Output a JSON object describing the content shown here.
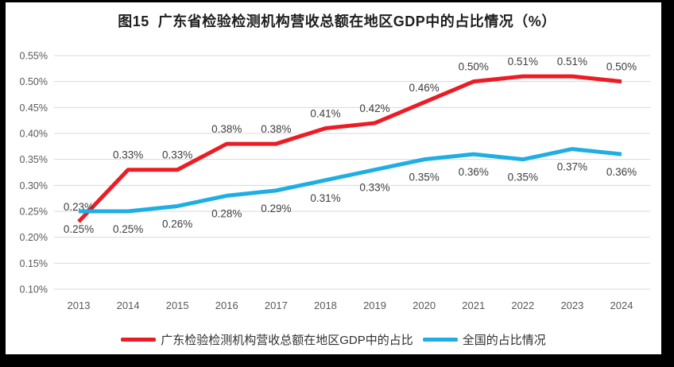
{
  "chart_data": {
    "type": "line",
    "title": "图15  广东省检验检测机构营收总额在地区GDP中的占比情况（%）",
    "categories": [
      "2013",
      "2014",
      "2015",
      "2016",
      "2017",
      "2018",
      "2019",
      "2020",
      "2021",
      "2022",
      "2023",
      "2024"
    ],
    "series": [
      {
        "name": "广东检验检测机构营收总额在地区GDP中的占比",
        "color": "#ED1C24",
        "values": [
          0.23,
          0.33,
          0.33,
          0.38,
          0.38,
          0.41,
          0.42,
          0.46,
          0.5,
          0.51,
          0.51,
          0.5
        ],
        "labels": [
          "0.23%",
          "0.33%",
          "0.33%",
          "0.38%",
          "0.38%",
          "0.41%",
          "0.42%",
          "0.46%",
          "0.50%",
          "0.51%",
          "0.51%",
          "0.50%"
        ],
        "label_position": "above"
      },
      {
        "name": "全国的占比情况",
        "color": "#1FAEE4",
        "values": [
          0.25,
          0.25,
          0.26,
          0.28,
          0.29,
          0.31,
          0.33,
          0.35,
          0.36,
          0.35,
          0.37,
          0.36
        ],
        "labels": [
          "0.25%",
          "0.25%",
          "0.26%",
          "0.28%",
          "0.29%",
          "0.31%",
          "0.33%",
          "0.35%",
          "0.36%",
          "0.35%",
          "0.37%",
          "0.36%"
        ],
        "label_position": "below"
      }
    ],
    "ylim": [
      0.1,
      0.55
    ],
    "yticks": [
      {
        "v": 0.55,
        "label": "0.55%"
      },
      {
        "v": 0.5,
        "label": "0.50%"
      },
      {
        "v": 0.45,
        "label": "0.45%"
      },
      {
        "v": 0.4,
        "label": "0.40%"
      },
      {
        "v": 0.35,
        "label": "0.35%"
      },
      {
        "v": 0.3,
        "label": "0.30%"
      },
      {
        "v": 0.25,
        "label": "0.25%"
      },
      {
        "v": 0.2,
        "label": "0.20%"
      },
      {
        "v": 0.15,
        "label": "0.15%"
      },
      {
        "v": 0.1,
        "label": "0.10%"
      }
    ],
    "grid": "horizontal",
    "grid_color": "#d9d9d9",
    "legend_position": "bottom"
  }
}
